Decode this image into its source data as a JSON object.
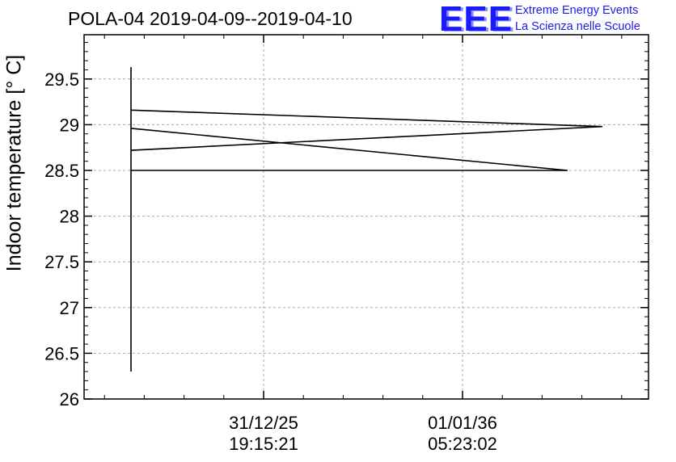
{
  "chart_data": {
    "type": "line",
    "title": "POLA-04 2019-04-09--2019-04-10",
    "ylabel": "Indoor temperature [° C]",
    "xlabel": "",
    "ylim": [
      26,
      30
    ],
    "yticks": [
      "26",
      "26.5",
      "27",
      "27.5",
      "28",
      "28.5",
      "29",
      "29.5"
    ],
    "xticks": [
      {
        "date": "31/12/25",
        "time": "19:15:21"
      },
      {
        "date": "01/01/36",
        "time": "05:23:02"
      }
    ],
    "grid": true,
    "series": [
      {
        "values_note_free": true,
        "points": [
          {
            "x": 0.0,
            "y": 26.3
          },
          {
            "x": 0.0,
            "y": 29.63
          },
          {
            "x": 0.0,
            "y": 29.16
          },
          {
            "x": 0.87,
            "y": 28.98
          },
          {
            "x": 0.0,
            "y": 28.72
          },
          {
            "x": 0.0,
            "y": 28.96
          },
          {
            "x": 0.806,
            "y": 28.5
          },
          {
            "x": 0.0,
            "y": 28.5
          }
        ]
      }
    ]
  },
  "logo": {
    "text": "EEE",
    "line1": "Extreme Energy Events",
    "line2": "La Scienza nelle Scuole"
  }
}
